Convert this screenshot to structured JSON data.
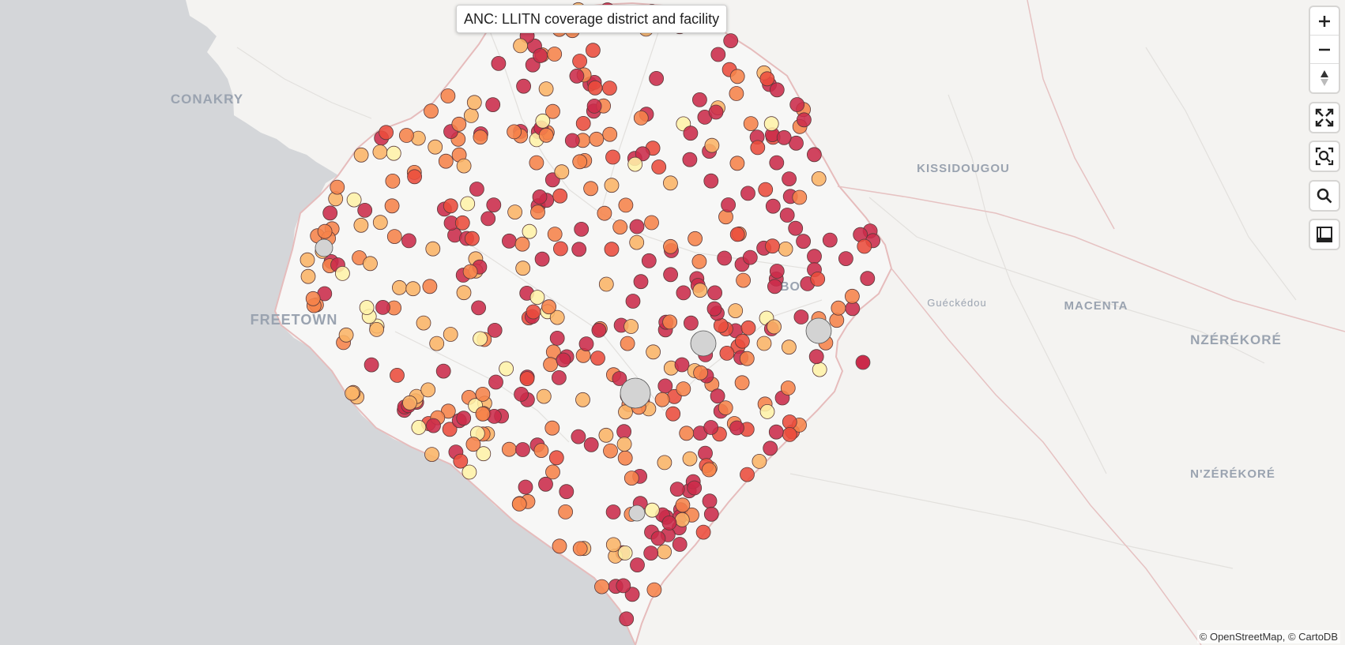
{
  "title": "ANC: LLITN coverage district and facility",
  "attribution": "© OpenStreetMap, © CartoDB",
  "place_labels": [
    "CONAKRY",
    "FREETOWN",
    "KISSIDOUGOU",
    "Guéckédou",
    "MACENTA",
    "NZÉRÉKORÉ",
    "N'ZÉRÉKORÉ",
    "BO"
  ],
  "controls": [
    "zoom-in-icon",
    "zoom-out-icon",
    "reset-bearing-icon",
    "fullscreen-icon",
    "zoom-to-content-icon",
    "search-icon",
    "measure-icon"
  ],
  "colors": {
    "sea": "#d4d6d9",
    "land": "#f4f3f1",
    "country": "#f7f7f7",
    "boundary": "#e8b8b8",
    "dark_red": "#cb2b4a",
    "red": "#ea4c3c",
    "orange": "#f6834a",
    "light_orange": "#fbb467",
    "pale": "#fff2a8",
    "no_data": "#d3d3d3"
  },
  "colors_order": [
    "dark_red",
    "red",
    "orange",
    "light_orange",
    "pale",
    "no_data"
  ]
}
